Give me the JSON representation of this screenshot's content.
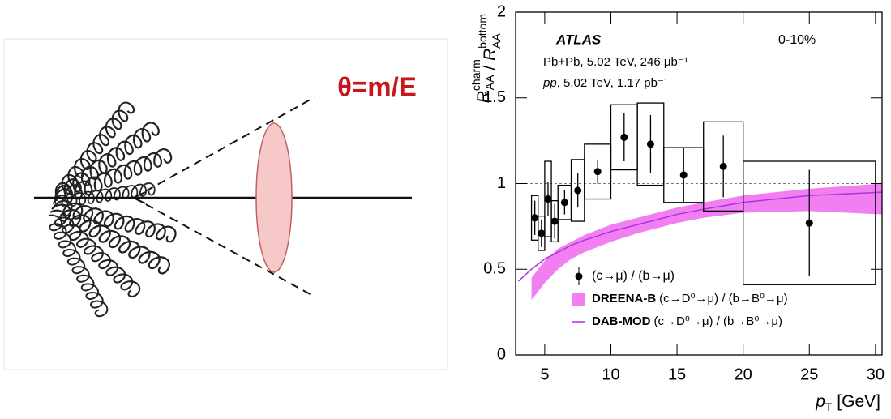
{
  "diagram": {
    "label": "θ=m/E"
  },
  "chart_data": {
    "type": "scatter",
    "annotations": {
      "experiment": "ATLAS",
      "centrality": "0-10%",
      "system1": "Pb+Pb, 5.02 TeV, 246  μb⁻¹",
      "system2_italic": "pp",
      "system2": ", 5.02 TeV, 1.17 pb⁻¹"
    },
    "y_label": {
      "main1": "R",
      "sup1": "charm",
      "sub1": "AA",
      "sep": " / ",
      "main2": "R",
      "sup2": "bottom",
      "sub2": "AA"
    },
    "x_label": {
      "main": "p",
      "sub": "T",
      "unit": " [GeV]"
    },
    "xlim": [
      2.8,
      30.5
    ],
    "xticks": [
      5,
      10,
      15,
      20,
      25,
      30
    ],
    "ylim": [
      0,
      2
    ],
    "yticks": [
      0,
      0.5,
      1,
      1.5,
      2
    ],
    "reference_line": 1,
    "series": [
      {
        "name": "(c→μ) / (b→μ)",
        "kind": "points",
        "color": "#000000",
        "x": [
          4.25,
          4.75,
          5.25,
          5.75,
          6.5,
          7.5,
          9,
          11,
          13,
          15.5,
          18.5,
          25
        ],
        "bins": [
          4,
          4.5,
          5,
          5.5,
          6,
          7,
          8,
          10,
          12,
          14,
          17,
          20,
          30
        ],
        "values": [
          0.8,
          0.71,
          0.91,
          0.78,
          0.89,
          0.96,
          1.07,
          1.27,
          1.23,
          1.05,
          1.1,
          0.77
        ],
        "stat_err": [
          0.1,
          0.08,
          0.1,
          0.1,
          0.07,
          0.1,
          0.07,
          0.14,
          0.17,
          0.16,
          0.18,
          0.31
        ],
        "sys_err": [
          0.13,
          0.1,
          0.22,
          0.12,
          0.1,
          0.18,
          0.16,
          0.19,
          0.24,
          0.16,
          0.26,
          0.36
        ]
      },
      {
        "name": "DREENA-B",
        "label": "(c→D⁰→μ) / (b→B⁰→μ)",
        "kind": "band",
        "color": "#f27ff2",
        "x": [
          4,
          5,
          6,
          7,
          8,
          10,
          12,
          15,
          17,
          20,
          25,
          30.5
        ],
        "lower": [
          0.32,
          0.42,
          0.5,
          0.56,
          0.6,
          0.66,
          0.71,
          0.77,
          0.8,
          0.83,
          0.84,
          0.82
        ],
        "upper": [
          0.45,
          0.55,
          0.62,
          0.66,
          0.7,
          0.76,
          0.8,
          0.86,
          0.89,
          0.93,
          0.97,
          1.0
        ]
      },
      {
        "name": "DAB-MOD",
        "label": "(c→D⁰→μ) / (b→B⁰→μ)",
        "kind": "line",
        "color": "#b030e0",
        "x": [
          3,
          4,
          5,
          6,
          7,
          8,
          10,
          12,
          15,
          17,
          20,
          25,
          30.5
        ],
        "values": [
          0.43,
          0.5,
          0.56,
          0.6,
          0.64,
          0.67,
          0.72,
          0.76,
          0.82,
          0.85,
          0.89,
          0.93,
          0.95
        ]
      }
    ]
  }
}
